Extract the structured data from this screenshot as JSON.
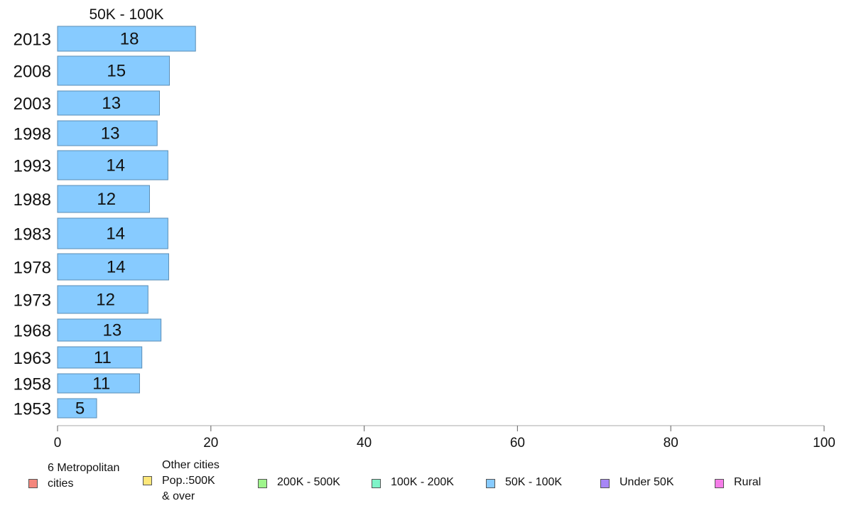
{
  "chart_data": {
    "type": "bar",
    "orientation": "horizontal",
    "title": "50K - 100K",
    "categories": [
      "2013",
      "2008",
      "2003",
      "1998",
      "1993",
      "1988",
      "1983",
      "1978",
      "1973",
      "1968",
      "1963",
      "1958",
      "1953"
    ],
    "values": [
      18,
      15,
      13,
      13,
      14,
      12,
      14,
      14,
      12,
      13,
      11,
      11,
      5
    ],
    "bar_lengths": [
      18,
      14.6,
      13.3,
      13.0,
      14.4,
      12.0,
      14.4,
      14.5,
      11.8,
      13.5,
      11.0,
      10.7,
      5.1
    ],
    "xlim": [
      0,
      100
    ],
    "x_ticks": [
      "0",
      "20",
      "40",
      "60",
      "80",
      "100"
    ],
    "legend_position": "bottom",
    "legend": [
      {
        "label": "6 Metropolitan\n cities",
        "color": "#f4877d"
      },
      {
        "label": "Other cities\nPop.:500K\n & over",
        "color": "#fde77a"
      },
      {
        "label": "200K - 500K",
        "color": "#9ef58b"
      },
      {
        "label": "100K - 200K",
        "color": "#7ff3c8"
      },
      {
        "label": "50K - 100K",
        "color": "#87cbff"
      },
      {
        "label": "Under 50K",
        "color": "#a787f5"
      },
      {
        "label": "Rural",
        "color": "#f57de8"
      }
    ],
    "bar_color": "#87cbff",
    "bar_border": "#5a8db5"
  }
}
